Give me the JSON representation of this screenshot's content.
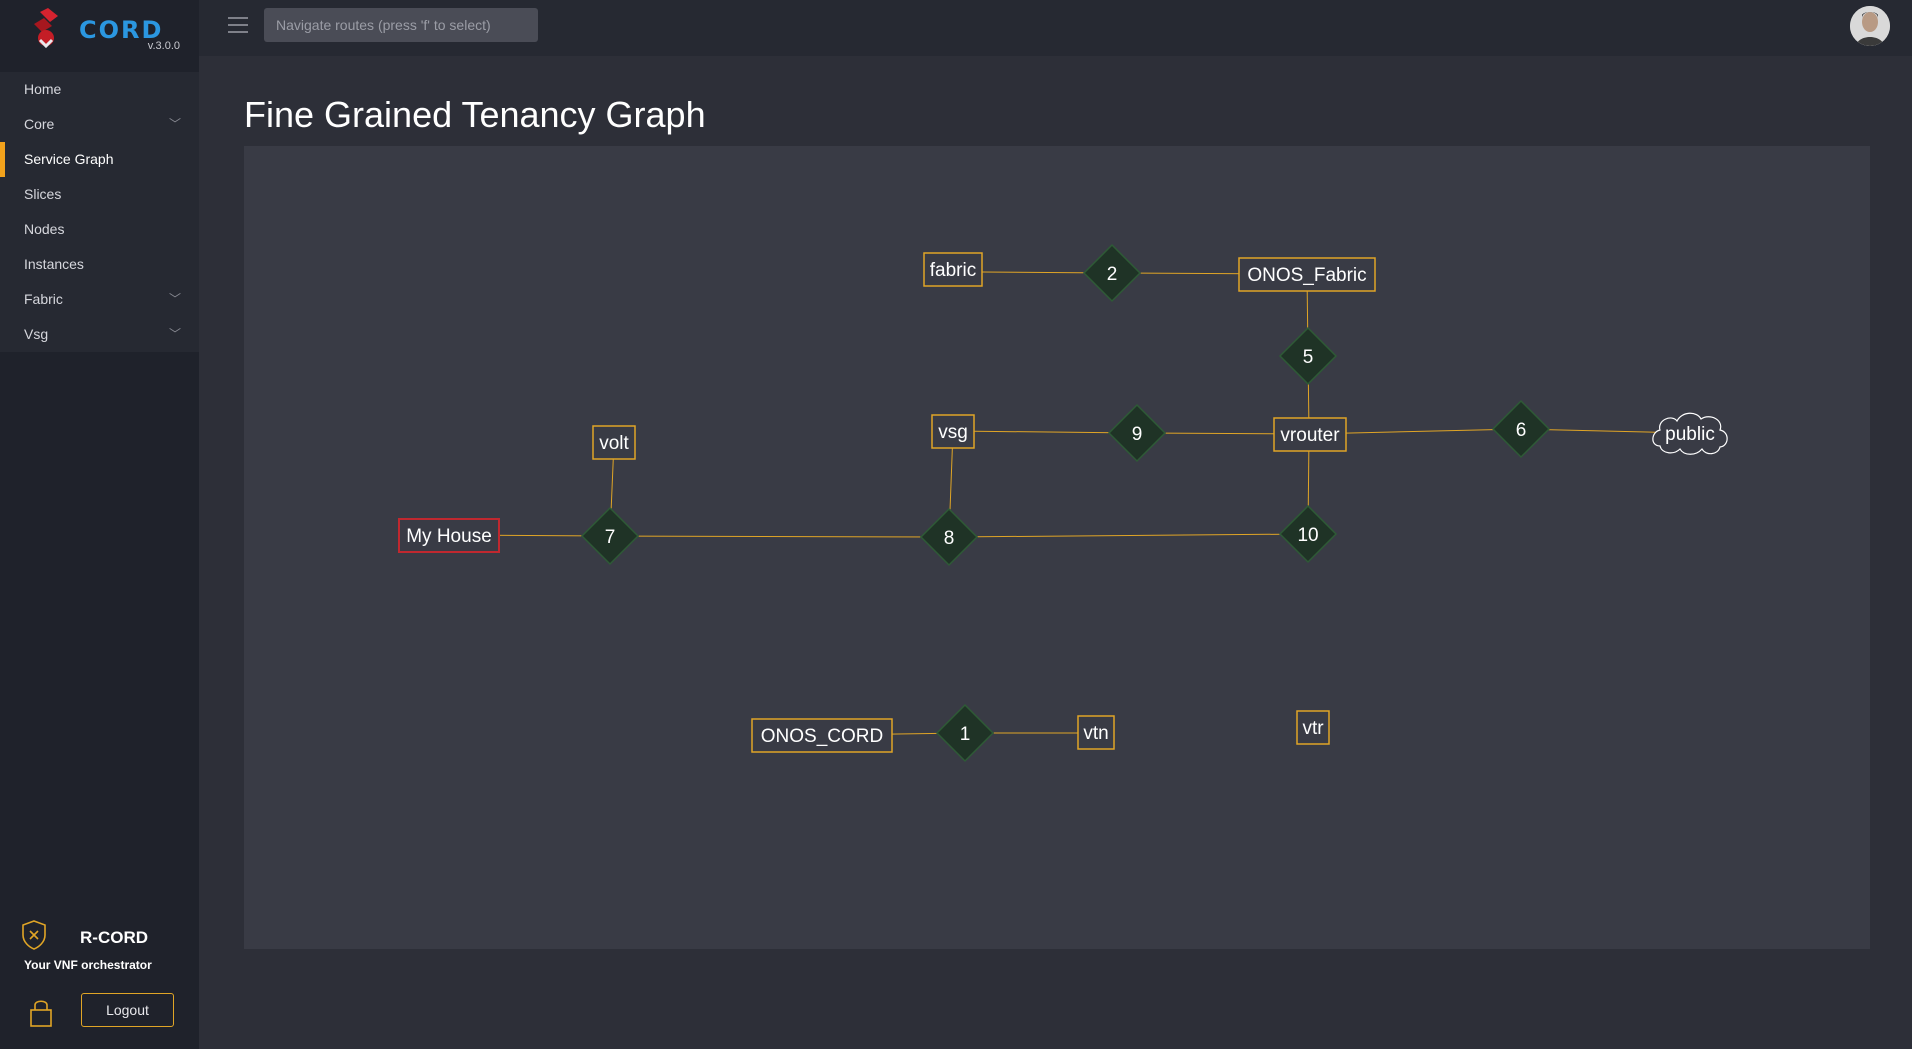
{
  "app": {
    "logo_text": "CORD",
    "version": "v.3.0.0"
  },
  "sidebar": {
    "items": [
      {
        "label": "Home",
        "has_submenu": false,
        "active": false
      },
      {
        "label": "Core",
        "has_submenu": true,
        "active": false
      },
      {
        "label": "Service Graph",
        "has_submenu": false,
        "active": true
      },
      {
        "label": "Slices",
        "has_submenu": false,
        "active": false
      },
      {
        "label": "Nodes",
        "has_submenu": false,
        "active": false
      },
      {
        "label": "Instances",
        "has_submenu": false,
        "active": false
      },
      {
        "label": "Fabric",
        "has_submenu": true,
        "active": false
      },
      {
        "label": "Vsg",
        "has_submenu": true,
        "active": false
      }
    ],
    "brand_name": "R-CORD",
    "brand_tagline": "Your VNF orchestrator",
    "logout_label": "Logout"
  },
  "topbar": {
    "search_placeholder": "Navigate routes (press 'f' to select)",
    "search_value": ""
  },
  "page": {
    "title": "Fine Grained Tenancy Graph"
  },
  "graph": {
    "services": [
      "fabric",
      "ONOS_Fabric",
      "volt",
      "vsg",
      "vrouter",
      "public",
      "My House",
      "ONOS_CORD",
      "vtn",
      "vtr"
    ],
    "tenants": [
      "2",
      "5",
      "9",
      "6",
      "7",
      "8",
      "10",
      "1"
    ],
    "highlighted_node": "My House",
    "colors": {
      "link": "#e0a526",
      "service_border": "#e0a526",
      "highlight_border": "#c0282f",
      "tenant_fill": "#1f3326",
      "tenant_border": "#2e5a36"
    }
  }
}
